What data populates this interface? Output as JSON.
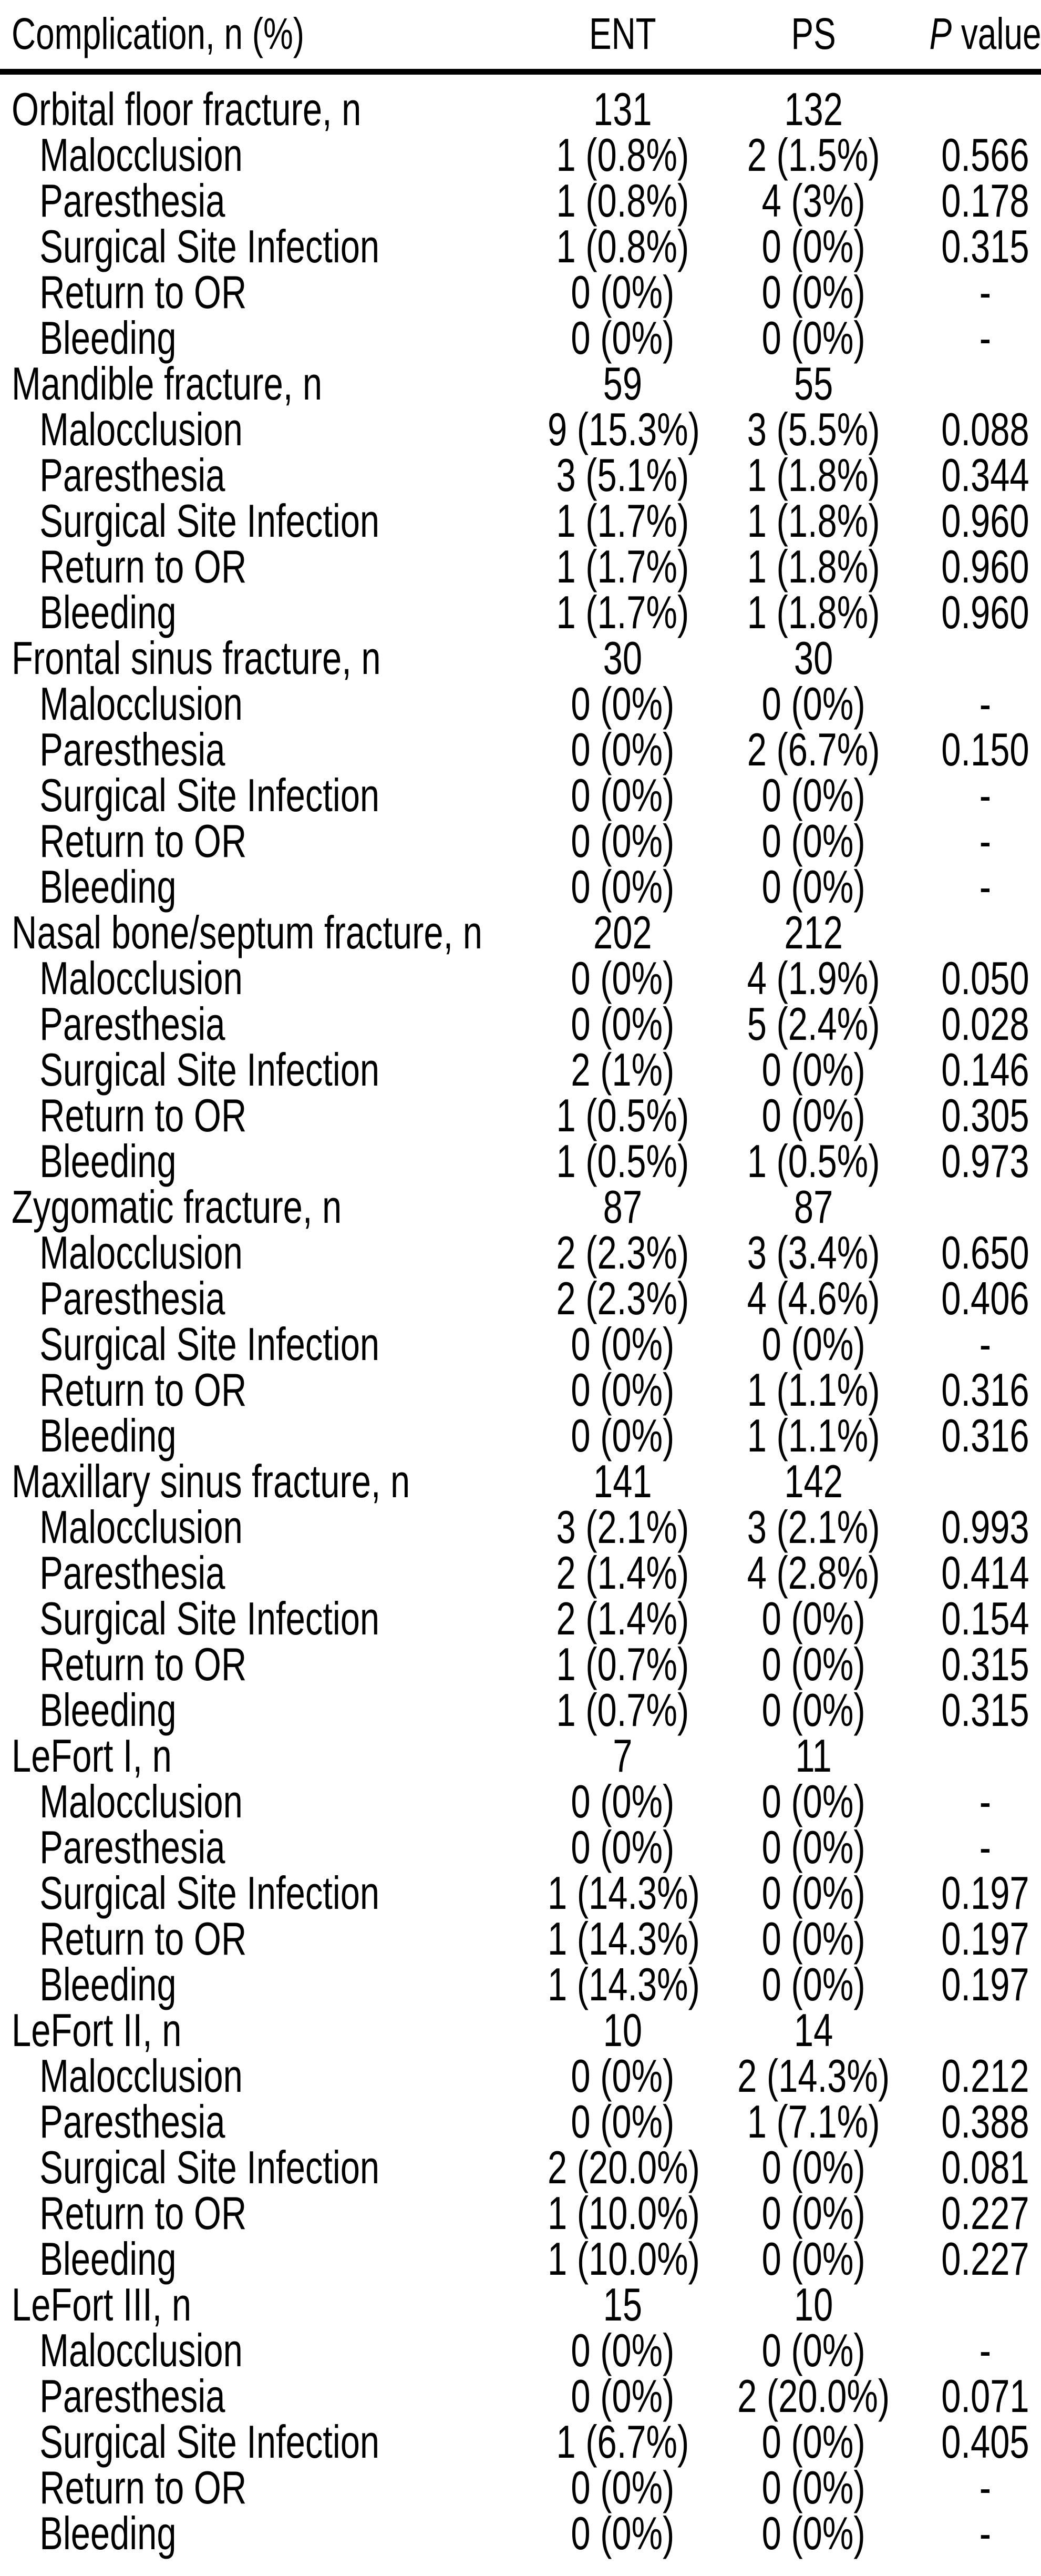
{
  "colors": {
    "background": "#ffffff",
    "text": "#000000",
    "rule": "#000000"
  },
  "table": {
    "header": {
      "complication": "Complication, n (%)",
      "ent": "ENT",
      "ps": "PS",
      "p_symbol": "P",
      "p_rest": " value"
    },
    "missing_p_placeholder": "-",
    "groups": [
      {
        "label": "Orbital floor fracture, n",
        "ent_n": "131",
        "ps_n": "132",
        "p": "",
        "rows": [
          {
            "label": "Malocclusion",
            "ent": "1 (0.8%)",
            "ps": "2 (1.5%)",
            "p": "0.566"
          },
          {
            "label": "Paresthesia",
            "ent": "1 (0.8%)",
            "ps": "4 (3%)",
            "p": "0.178"
          },
          {
            "label": "Surgical Site Infection",
            "ent": "1 (0.8%)",
            "ps": "0 (0%)",
            "p": "0.315"
          },
          {
            "label": "Return to OR",
            "ent": "0 (0%)",
            "ps": "0 (0%)",
            "p": "-"
          },
          {
            "label": "Bleeding",
            "ent": "0 (0%)",
            "ps": "0 (0%)",
            "p": "-"
          }
        ]
      },
      {
        "label": "Mandible fracture, n",
        "ent_n": "59",
        "ps_n": "55",
        "p": "",
        "rows": [
          {
            "label": "Malocclusion",
            "ent": "9 (15.3%)",
            "ps": "3 (5.5%)",
            "p": "0.088"
          },
          {
            "label": "Paresthesia",
            "ent": "3 (5.1%)",
            "ps": "1 (1.8%)",
            "p": "0.344"
          },
          {
            "label": "Surgical Site Infection",
            "ent": "1 (1.7%)",
            "ps": "1 (1.8%)",
            "p": "0.960"
          },
          {
            "label": "Return to OR",
            "ent": "1 (1.7%)",
            "ps": "1 (1.8%)",
            "p": "0.960"
          },
          {
            "label": "Bleeding",
            "ent": "1 (1.7%)",
            "ps": "1 (1.8%)",
            "p": "0.960"
          }
        ]
      },
      {
        "label": "Frontal sinus fracture, n",
        "ent_n": "30",
        "ps_n": "30",
        "p": "",
        "rows": [
          {
            "label": "Malocclusion",
            "ent": "0 (0%)",
            "ps": "0 (0%)",
            "p": "-"
          },
          {
            "label": "Paresthesia",
            "ent": "0 (0%)",
            "ps": "2 (6.7%)",
            "p": "0.150"
          },
          {
            "label": "Surgical Site Infection",
            "ent": "0 (0%)",
            "ps": "0 (0%)",
            "p": "-"
          },
          {
            "label": "Return to OR",
            "ent": "0 (0%)",
            "ps": "0 (0%)",
            "p": "-"
          },
          {
            "label": "Bleeding",
            "ent": "0 (0%)",
            "ps": "0 (0%)",
            "p": "-"
          }
        ]
      },
      {
        "label": "Nasal bone/septum fracture, n",
        "ent_n": "202",
        "ps_n": "212",
        "p": "",
        "rows": [
          {
            "label": "Malocclusion",
            "ent": "0 (0%)",
            "ps": "4 (1.9%)",
            "p": "0.050"
          },
          {
            "label": "Paresthesia",
            "ent": "0 (0%)",
            "ps": "5 (2.4%)",
            "p": "0.028"
          },
          {
            "label": "Surgical Site Infection",
            "ent": "2 (1%)",
            "ps": "0 (0%)",
            "p": "0.146"
          },
          {
            "label": "Return to OR",
            "ent": "1 (0.5%)",
            "ps": "0 (0%)",
            "p": "0.305"
          },
          {
            "label": "Bleeding",
            "ent": "1 (0.5%)",
            "ps": "1 (0.5%)",
            "p": "0.973"
          }
        ]
      },
      {
        "label": "Zygomatic fracture, n",
        "ent_n": "87",
        "ps_n": "87",
        "p": "",
        "rows": [
          {
            "label": "Malocclusion",
            "ent": "2 (2.3%)",
            "ps": "3 (3.4%)",
            "p": "0.650"
          },
          {
            "label": "Paresthesia",
            "ent": "2 (2.3%)",
            "ps": "4 (4.6%)",
            "p": "0.406"
          },
          {
            "label": "Surgical Site Infection",
            "ent": "0 (0%)",
            "ps": "0 (0%)",
            "p": "-"
          },
          {
            "label": "Return to OR",
            "ent": "0 (0%)",
            "ps": "1 (1.1%)",
            "p": "0.316"
          },
          {
            "label": "Bleeding",
            "ent": "0 (0%)",
            "ps": "1 (1.1%)",
            "p": "0.316"
          }
        ]
      },
      {
        "label": "Maxillary sinus fracture, n",
        "ent_n": "141",
        "ps_n": "142",
        "p": "",
        "rows": [
          {
            "label": "Malocclusion",
            "ent": "3 (2.1%)",
            "ps": "3 (2.1%)",
            "p": "0.993"
          },
          {
            "label": "Paresthesia",
            "ent": "2 (1.4%)",
            "ps": "4 (2.8%)",
            "p": "0.414"
          },
          {
            "label": "Surgical Site Infection",
            "ent": "2 (1.4%)",
            "ps": "0 (0%)",
            "p": "0.154"
          },
          {
            "label": "Return to OR",
            "ent": "1 (0.7%)",
            "ps": "0 (0%)",
            "p": "0.315"
          },
          {
            "label": "Bleeding",
            "ent": "1 (0.7%)",
            "ps": "0 (0%)",
            "p": "0.315"
          }
        ]
      },
      {
        "label": "LeFort I, n",
        "ent_n": "7",
        "ps_n": "11",
        "p": "",
        "rows": [
          {
            "label": "Malocclusion",
            "ent": "0 (0%)",
            "ps": "0 (0%)",
            "p": "-"
          },
          {
            "label": "Paresthesia",
            "ent": "0 (0%)",
            "ps": "0 (0%)",
            "p": "-"
          },
          {
            "label": "Surgical Site Infection",
            "ent": "1 (14.3%)",
            "ps": "0 (0%)",
            "p": "0.197"
          },
          {
            "label": "Return to OR",
            "ent": "1 (14.3%)",
            "ps": "0 (0%)",
            "p": "0.197"
          },
          {
            "label": "Bleeding",
            "ent": "1 (14.3%)",
            "ps": "0 (0%)",
            "p": "0.197"
          }
        ]
      },
      {
        "label": "LeFort II, n",
        "ent_n": "10",
        "ps_n": "14",
        "p": "",
        "rows": [
          {
            "label": "Malocclusion",
            "ent": "0 (0%)",
            "ps": "2 (14.3%)",
            "p": "0.212"
          },
          {
            "label": "Paresthesia",
            "ent": "0 (0%)",
            "ps": "1 (7.1%)",
            "p": "0.388"
          },
          {
            "label": "Surgical Site Infection",
            "ent": "2 (20.0%)",
            "ps": "0 (0%)",
            "p": "0.081"
          },
          {
            "label": "Return to OR",
            "ent": "1 (10.0%)",
            "ps": "0 (0%)",
            "p": "0.227"
          },
          {
            "label": "Bleeding",
            "ent": "1 (10.0%)",
            "ps": "0 (0%)",
            "p": "0.227"
          }
        ]
      },
      {
        "label": "LeFort III, n",
        "ent_n": "15",
        "ps_n": "10",
        "p": "",
        "rows": [
          {
            "label": "Malocclusion",
            "ent": "0 (0%)",
            "ps": "0 (0%)",
            "p": "-"
          },
          {
            "label": "Paresthesia",
            "ent": "0 (0%)",
            "ps": "2 (20.0%)",
            "p": "0.071"
          },
          {
            "label": "Surgical Site Infection",
            "ent": "1 (6.7%)",
            "ps": "0 (0%)",
            "p": "0.405"
          },
          {
            "label": "Return to OR",
            "ent": "0 (0%)",
            "ps": "0 (0%)",
            "p": "-"
          },
          {
            "label": "Bleeding",
            "ent": "0 (0%)",
            "ps": "0 (0%)",
            "p": "-"
          }
        ]
      }
    ]
  }
}
